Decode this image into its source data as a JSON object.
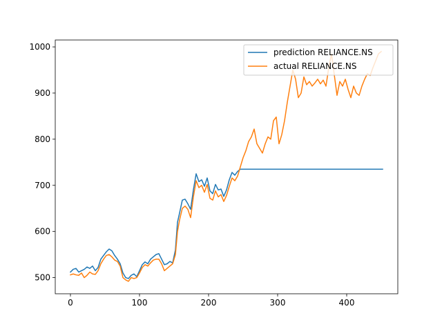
{
  "chart_data": {
    "type": "line",
    "title": "",
    "xlabel": "",
    "ylabel": "",
    "xlim": [
      -22,
      474
    ],
    "ylim": [
      465,
      1015
    ],
    "xticks": [
      0,
      100,
      200,
      300,
      400
    ],
    "yticks": [
      500,
      600,
      700,
      800,
      900,
      1000
    ],
    "grid": false,
    "legend_position": "top-right",
    "series": [
      {
        "name": "prediction RELIANCE.NS",
        "color": "#1f77b4",
        "points": [
          [
            0,
            512
          ],
          [
            4,
            518
          ],
          [
            8,
            520
          ],
          [
            12,
            512
          ],
          [
            16,
            515
          ],
          [
            20,
            518
          ],
          [
            24,
            523
          ],
          [
            28,
            520
          ],
          [
            32,
            525
          ],
          [
            36,
            515
          ],
          [
            40,
            522
          ],
          [
            44,
            540
          ],
          [
            48,
            548
          ],
          [
            52,
            556
          ],
          [
            56,
            562
          ],
          [
            60,
            558
          ],
          [
            64,
            548
          ],
          [
            68,
            540
          ],
          [
            72,
            530
          ],
          [
            76,
            510
          ],
          [
            80,
            500
          ],
          [
            84,
            498
          ],
          [
            88,
            505
          ],
          [
            92,
            508
          ],
          [
            96,
            502
          ],
          [
            100,
            515
          ],
          [
            104,
            528
          ],
          [
            108,
            534
          ],
          [
            112,
            530
          ],
          [
            116,
            540
          ],
          [
            120,
            545
          ],
          [
            124,
            550
          ],
          [
            128,
            552
          ],
          [
            132,
            540
          ],
          [
            136,
            528
          ],
          [
            140,
            530
          ],
          [
            144,
            535
          ],
          [
            148,
            532
          ],
          [
            152,
            560
          ],
          [
            155,
            620
          ],
          [
            158,
            640
          ],
          [
            162,
            668
          ],
          [
            166,
            670
          ],
          [
            170,
            660
          ],
          [
            174,
            648
          ],
          [
            178,
            690
          ],
          [
            182,
            725
          ],
          [
            186,
            708
          ],
          [
            190,
            712
          ],
          [
            194,
            698
          ],
          [
            198,
            716
          ],
          [
            202,
            688
          ],
          [
            206,
            682
          ],
          [
            210,
            702
          ],
          [
            214,
            690
          ],
          [
            218,
            692
          ],
          [
            222,
            676
          ],
          [
            226,
            690
          ],
          [
            230,
            712
          ],
          [
            234,
            728
          ],
          [
            238,
            722
          ],
          [
            242,
            730
          ],
          [
            246,
            735
          ],
          [
            452,
            735
          ]
        ]
      },
      {
        "name": "actual RELIANCE.NS",
        "color": "#ff7f0e",
        "points": [
          [
            0,
            506
          ],
          [
            4,
            508
          ],
          [
            8,
            506
          ],
          [
            12,
            505
          ],
          [
            16,
            510
          ],
          [
            20,
            500
          ],
          [
            24,
            505
          ],
          [
            28,
            512
          ],
          [
            32,
            508
          ],
          [
            36,
            507
          ],
          [
            40,
            515
          ],
          [
            44,
            530
          ],
          [
            48,
            540
          ],
          [
            52,
            548
          ],
          [
            56,
            550
          ],
          [
            60,
            545
          ],
          [
            64,
            538
          ],
          [
            68,
            535
          ],
          [
            72,
            525
          ],
          [
            76,
            500
          ],
          [
            80,
            495
          ],
          [
            84,
            492
          ],
          [
            88,
            500
          ],
          [
            92,
            498
          ],
          [
            96,
            500
          ],
          [
            100,
            510
          ],
          [
            104,
            522
          ],
          [
            108,
            528
          ],
          [
            112,
            525
          ],
          [
            116,
            532
          ],
          [
            120,
            538
          ],
          [
            124,
            540
          ],
          [
            128,
            540
          ],
          [
            132,
            530
          ],
          [
            136,
            515
          ],
          [
            140,
            520
          ],
          [
            144,
            525
          ],
          [
            148,
            530
          ],
          [
            152,
            550
          ],
          [
            155,
            600
          ],
          [
            158,
            625
          ],
          [
            162,
            650
          ],
          [
            166,
            655
          ],
          [
            170,
            648
          ],
          [
            174,
            630
          ],
          [
            178,
            675
          ],
          [
            182,
            710
          ],
          [
            186,
            695
          ],
          [
            190,
            700
          ],
          [
            194,
            685
          ],
          [
            198,
            702
          ],
          [
            202,
            672
          ],
          [
            206,
            668
          ],
          [
            210,
            688
          ],
          [
            214,
            675
          ],
          [
            218,
            680
          ],
          [
            222,
            665
          ],
          [
            226,
            678
          ],
          [
            230,
            698
          ],
          [
            234,
            716
          ],
          [
            238,
            710
          ],
          [
            242,
            720
          ],
          [
            246,
            740
          ],
          [
            250,
            760
          ],
          [
            254,
            775
          ],
          [
            258,
            795
          ],
          [
            262,
            805
          ],
          [
            266,
            822
          ],
          [
            270,
            790
          ],
          [
            274,
            780
          ],
          [
            278,
            770
          ],
          [
            282,
            790
          ],
          [
            286,
            805
          ],
          [
            290,
            800
          ],
          [
            294,
            840
          ],
          [
            298,
            848
          ],
          [
            302,
            790
          ],
          [
            306,
            810
          ],
          [
            310,
            840
          ],
          [
            314,
            880
          ],
          [
            318,
            915
          ],
          [
            322,
            950
          ],
          [
            326,
            930
          ],
          [
            330,
            890
          ],
          [
            334,
            900
          ],
          [
            338,
            935
          ],
          [
            342,
            918
          ],
          [
            346,
            925
          ],
          [
            350,
            915
          ],
          [
            354,
            922
          ],
          [
            358,
            930
          ],
          [
            362,
            920
          ],
          [
            366,
            928
          ],
          [
            370,
            915
          ],
          [
            374,
            955
          ],
          [
            378,
            985
          ],
          [
            382,
            940
          ],
          [
            386,
            895
          ],
          [
            390,
            925
          ],
          [
            394,
            915
          ],
          [
            398,
            930
          ],
          [
            402,
            908
          ],
          [
            406,
            890
          ],
          [
            410,
            915
          ],
          [
            414,
            900
          ],
          [
            418,
            895
          ],
          [
            422,
            915
          ],
          [
            426,
            930
          ],
          [
            430,
            942
          ],
          [
            434,
            938
          ],
          [
            438,
            955
          ],
          [
            442,
            970
          ],
          [
            446,
            985
          ],
          [
            450,
            990
          ]
        ]
      }
    ]
  }
}
